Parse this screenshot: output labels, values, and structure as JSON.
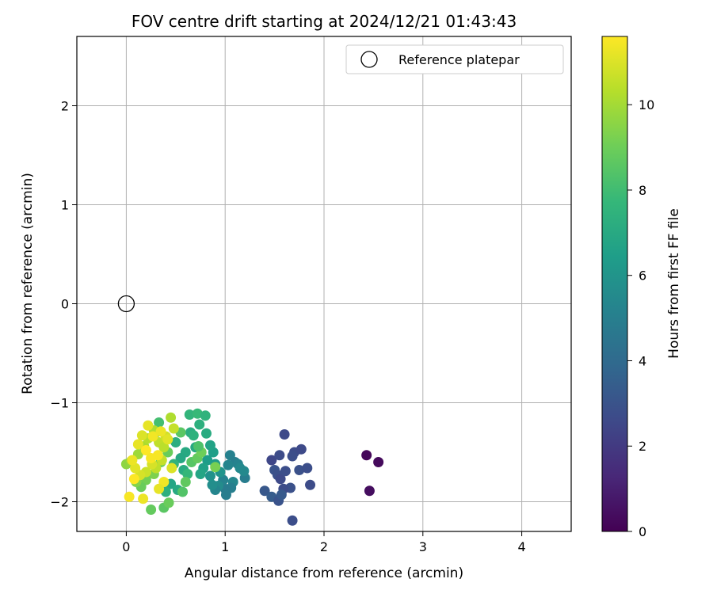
{
  "chart_data": {
    "type": "scatter",
    "title": "FOV centre drift starting at 2024/12/21 01:43:43",
    "xlabel": "Angular distance from reference (arcmin)",
    "ylabel": "Rotation from reference (arcmin)",
    "xlim": [
      -0.5,
      4.5
    ],
    "ylim": [
      -2.3,
      2.7
    ],
    "xticks": [
      0,
      1,
      2,
      3,
      4
    ],
    "yticks": [
      -2,
      -1,
      0,
      1,
      2
    ],
    "xtick_labels": [
      "0",
      "1",
      "2",
      "3",
      "4"
    ],
    "ytick_labels": [
      "−2",
      "−1",
      "0",
      "1",
      "2"
    ],
    "grid": true,
    "legend": {
      "placement": "top-right",
      "entries": [
        "Reference platepar"
      ]
    },
    "reference": {
      "name": "Reference platepar",
      "x": 0,
      "y": 0,
      "marker": "open-circle"
    },
    "colorbar": {
      "label": "Hours from first FF file",
      "range": [
        0,
        11.6
      ],
      "ticks": [
        0,
        2,
        4,
        6,
        8,
        10
      ],
      "tick_labels": [
        "0",
        "2",
        "4",
        "6",
        "8",
        "10"
      ],
      "colormap": "viridis"
    },
    "colormap_stops": [
      "#440154",
      "#482878",
      "#3e4989",
      "#31688e",
      "#26828e",
      "#1f9e89",
      "#35b779",
      "#6ece58",
      "#b5de2b",
      "#fde725"
    ],
    "points": [
      [
        2.43,
        -1.53,
        0.2
      ],
      [
        2.55,
        -1.6,
        0.3
      ],
      [
        2.46,
        -1.89,
        0.4
      ],
      [
        1.6,
        -1.32,
        2.6
      ],
      [
        1.7,
        -1.5,
        2.7
      ],
      [
        1.68,
        -1.54,
        2.8
      ],
      [
        1.77,
        -1.47,
        2.6
      ],
      [
        1.75,
        -1.68,
        2.9
      ],
      [
        1.83,
        -1.66,
        2.8
      ],
      [
        1.86,
        -1.83,
        2.7
      ],
      [
        1.47,
        -1.58,
        2.5
      ],
      [
        1.55,
        -1.53,
        2.7
      ],
      [
        1.5,
        -1.68,
        3.0
      ],
      [
        1.53,
        -1.73,
        2.9
      ],
      [
        1.56,
        -1.77,
        2.6
      ],
      [
        1.61,
        -1.69,
        2.8
      ],
      [
        1.66,
        -1.86,
        2.9
      ],
      [
        1.59,
        -1.87,
        2.7
      ],
      [
        1.4,
        -1.89,
        3.2
      ],
      [
        1.47,
        -1.95,
        3.4
      ],
      [
        1.54,
        -1.99,
        3.0
      ],
      [
        1.57,
        -1.93,
        3.3
      ],
      [
        1.68,
        -2.19,
        2.8
      ],
      [
        1.05,
        -1.53,
        5.1
      ],
      [
        1.1,
        -1.6,
        5.0
      ],
      [
        1.03,
        -1.63,
        5.3
      ],
      [
        1.13,
        -1.62,
        5.2
      ],
      [
        1.2,
        -1.76,
        4.9
      ],
      [
        1.19,
        -1.69,
        5.5
      ],
      [
        1.08,
        -1.8,
        5.4
      ],
      [
        1.06,
        -1.86,
        5.0
      ],
      [
        1.0,
        -1.87,
        4.8
      ],
      [
        0.98,
        -1.78,
        5.2
      ],
      [
        0.93,
        -1.84,
        5.6
      ],
      [
        0.9,
        -1.88,
        5.3
      ],
      [
        1.01,
        -1.93,
        4.9
      ],
      [
        0.87,
        -1.83,
        5.7
      ],
      [
        0.85,
        -1.74,
        5.9
      ],
      [
        1.15,
        -1.66,
        5.5
      ],
      [
        0.95,
        -1.7,
        6.0
      ],
      [
        0.9,
        -1.62,
        6.3
      ],
      [
        0.88,
        -1.5,
        6.5
      ],
      [
        0.85,
        -1.43,
        6.7
      ],
      [
        0.82,
        -1.58,
        6.4
      ],
      [
        0.78,
        -1.66,
        6.6
      ],
      [
        0.75,
        -1.72,
        6.8
      ],
      [
        0.7,
        -1.45,
        7.0
      ],
      [
        0.65,
        -1.3,
        7.2
      ],
      [
        0.68,
        -1.33,
        7.4
      ],
      [
        0.64,
        -1.12,
        7.6
      ],
      [
        0.72,
        -1.11,
        7.8
      ],
      [
        0.8,
        -1.13,
        7.5
      ],
      [
        0.74,
        -1.22,
        7.3
      ],
      [
        0.81,
        -1.31,
        7.1
      ],
      [
        0.6,
        -1.5,
        7.0
      ],
      [
        0.55,
        -1.56,
        6.9
      ],
      [
        0.5,
        -1.4,
        7.2
      ],
      [
        0.48,
        -1.62,
        7.5
      ],
      [
        0.58,
        -1.68,
        7.1
      ],
      [
        0.62,
        -1.72,
        7.7
      ],
      [
        0.45,
        -1.82,
        6.8
      ],
      [
        0.52,
        -1.88,
        7.0
      ],
      [
        0.4,
        -1.9,
        7.3
      ],
      [
        0.38,
        -2.06,
        8.6
      ],
      [
        0.43,
        -2.01,
        8.9
      ],
      [
        0.25,
        -2.08,
        8.8
      ],
      [
        0.57,
        -1.9,
        8.4
      ],
      [
        0.6,
        -1.8,
        8.7
      ],
      [
        0.66,
        -1.6,
        8.5
      ],
      [
        0.72,
        -1.56,
        8.8
      ],
      [
        0.76,
        -1.5,
        9.0
      ],
      [
        0.9,
        -1.65,
        9.2
      ],
      [
        0.73,
        -1.44,
        8.3
      ],
      [
        0.55,
        -1.3,
        8.6
      ],
      [
        0.33,
        -1.2,
        8.1
      ],
      [
        0.3,
        -1.3,
        8.4
      ],
      [
        0.42,
        -1.5,
        8.9
      ],
      [
        0.35,
        -1.6,
        9.0
      ],
      [
        0.28,
        -1.72,
        9.3
      ],
      [
        0.2,
        -1.78,
        9.1
      ],
      [
        0.15,
        -1.85,
        8.9
      ],
      [
        0.1,
        -1.8,
        9.4
      ],
      [
        0.0,
        -1.62,
        9.6
      ],
      [
        0.05,
        -1.59,
        9.8
      ],
      [
        0.12,
        -1.52,
        9.9
      ],
      [
        0.18,
        -1.44,
        10.1
      ],
      [
        0.22,
        -1.36,
        10.3
      ],
      [
        0.28,
        -1.28,
        10.2
      ],
      [
        0.33,
        -1.4,
        10.5
      ],
      [
        0.38,
        -1.45,
        10.4
      ],
      [
        0.45,
        -1.15,
        10.2
      ],
      [
        0.48,
        -1.26,
        10.6
      ],
      [
        0.4,
        -1.34,
        10.8
      ],
      [
        0.36,
        -1.58,
        10.6
      ],
      [
        0.3,
        -1.66,
        10.5
      ],
      [
        0.26,
        -1.62,
        10.9
      ],
      [
        0.2,
        -1.7,
        10.7
      ],
      [
        0.14,
        -1.73,
        10.9
      ],
      [
        0.09,
        -1.66,
        11.1
      ],
      [
        0.06,
        -1.58,
        11.3
      ],
      [
        0.12,
        -1.42,
        11.2
      ],
      [
        0.16,
        -1.33,
        11.0
      ],
      [
        0.22,
        -1.23,
        11.2
      ],
      [
        0.27,
        -1.34,
        11.4
      ],
      [
        0.32,
        -1.53,
        11.5
      ],
      [
        0.35,
        -1.29,
        11.3
      ],
      [
        0.42,
        -1.37,
        11.1
      ],
      [
        0.46,
        -1.66,
        11.0
      ],
      [
        0.38,
        -1.8,
        11.4
      ],
      [
        0.33,
        -1.87,
        11.2
      ],
      [
        0.03,
        -1.95,
        11.5
      ],
      [
        0.17,
        -1.97,
        11.3
      ],
      [
        0.08,
        -1.77,
        11.6
      ],
      [
        0.2,
        -1.48,
        11.6
      ],
      [
        0.25,
        -1.56,
        11.5
      ]
    ]
  }
}
